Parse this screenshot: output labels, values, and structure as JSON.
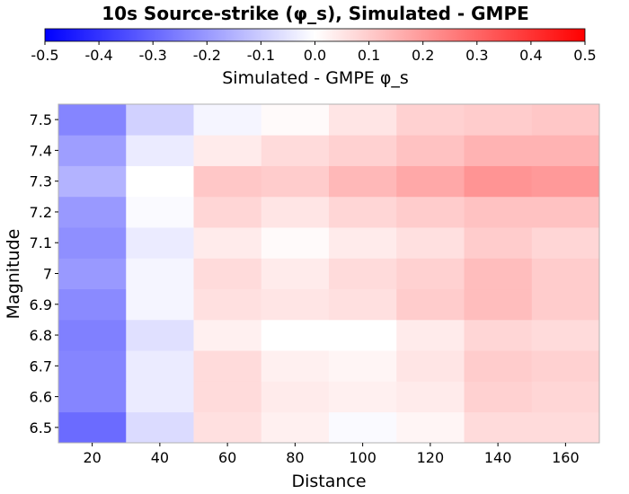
{
  "chart_data": {
    "type": "heatmap",
    "title": "10s Source-strike (φ_s), Simulated - GMPE",
    "xlabel": "Distance",
    "ylabel": "Magnitude",
    "colorbar": {
      "label": "Simulated - GMPE φ_s",
      "range": [
        -0.5,
        0.5
      ],
      "ticks": [
        "-0.5",
        "-0.4",
        "-0.3",
        "-0.2",
        "-0.1",
        "0.0",
        "0.1",
        "0.2",
        "0.3",
        "0.4",
        "0.5"
      ],
      "colors": [
        "#0000ff",
        "#ffffff",
        "#ff0000"
      ],
      "placement": "top"
    },
    "x": [
      20,
      40,
      60,
      80,
      100,
      120,
      140,
      160
    ],
    "xlim": [
      10,
      170
    ],
    "xticks": [
      "20",
      "40",
      "60",
      "80",
      "100",
      "120",
      "140",
      "160"
    ],
    "y": [
      "6.5",
      "6.6",
      "6.7",
      "6.8",
      "6.9",
      "7",
      "7.1",
      "7.2",
      "7.3",
      "7.4",
      "7.5"
    ],
    "values": [
      [
        -0.29,
        -0.07,
        0.06,
        0.03,
        -0.01,
        0.02,
        0.07,
        0.07
      ],
      [
        -0.24,
        -0.04,
        0.07,
        0.04,
        0.03,
        0.04,
        0.09,
        0.08
      ],
      [
        -0.24,
        -0.04,
        0.07,
        0.03,
        0.02,
        0.05,
        0.1,
        0.09
      ],
      [
        -0.25,
        -0.06,
        0.03,
        0.0,
        0.0,
        0.04,
        0.08,
        0.07
      ],
      [
        -0.23,
        -0.02,
        0.06,
        0.05,
        0.06,
        0.1,
        0.13,
        0.1
      ],
      [
        -0.2,
        -0.02,
        0.07,
        0.04,
        0.07,
        0.09,
        0.13,
        0.1
      ],
      [
        -0.22,
        -0.04,
        0.04,
        0.01,
        0.04,
        0.06,
        0.1,
        0.08
      ],
      [
        -0.2,
        -0.01,
        0.08,
        0.05,
        0.08,
        0.1,
        0.12,
        0.12
      ],
      [
        -0.15,
        0.0,
        0.11,
        0.1,
        0.14,
        0.17,
        0.21,
        0.2
      ],
      [
        -0.19,
        -0.04,
        0.04,
        0.07,
        0.09,
        0.12,
        0.15,
        0.15
      ],
      [
        -0.24,
        -0.09,
        -0.02,
        0.01,
        0.05,
        0.09,
        0.1,
        0.11
      ]
    ]
  }
}
